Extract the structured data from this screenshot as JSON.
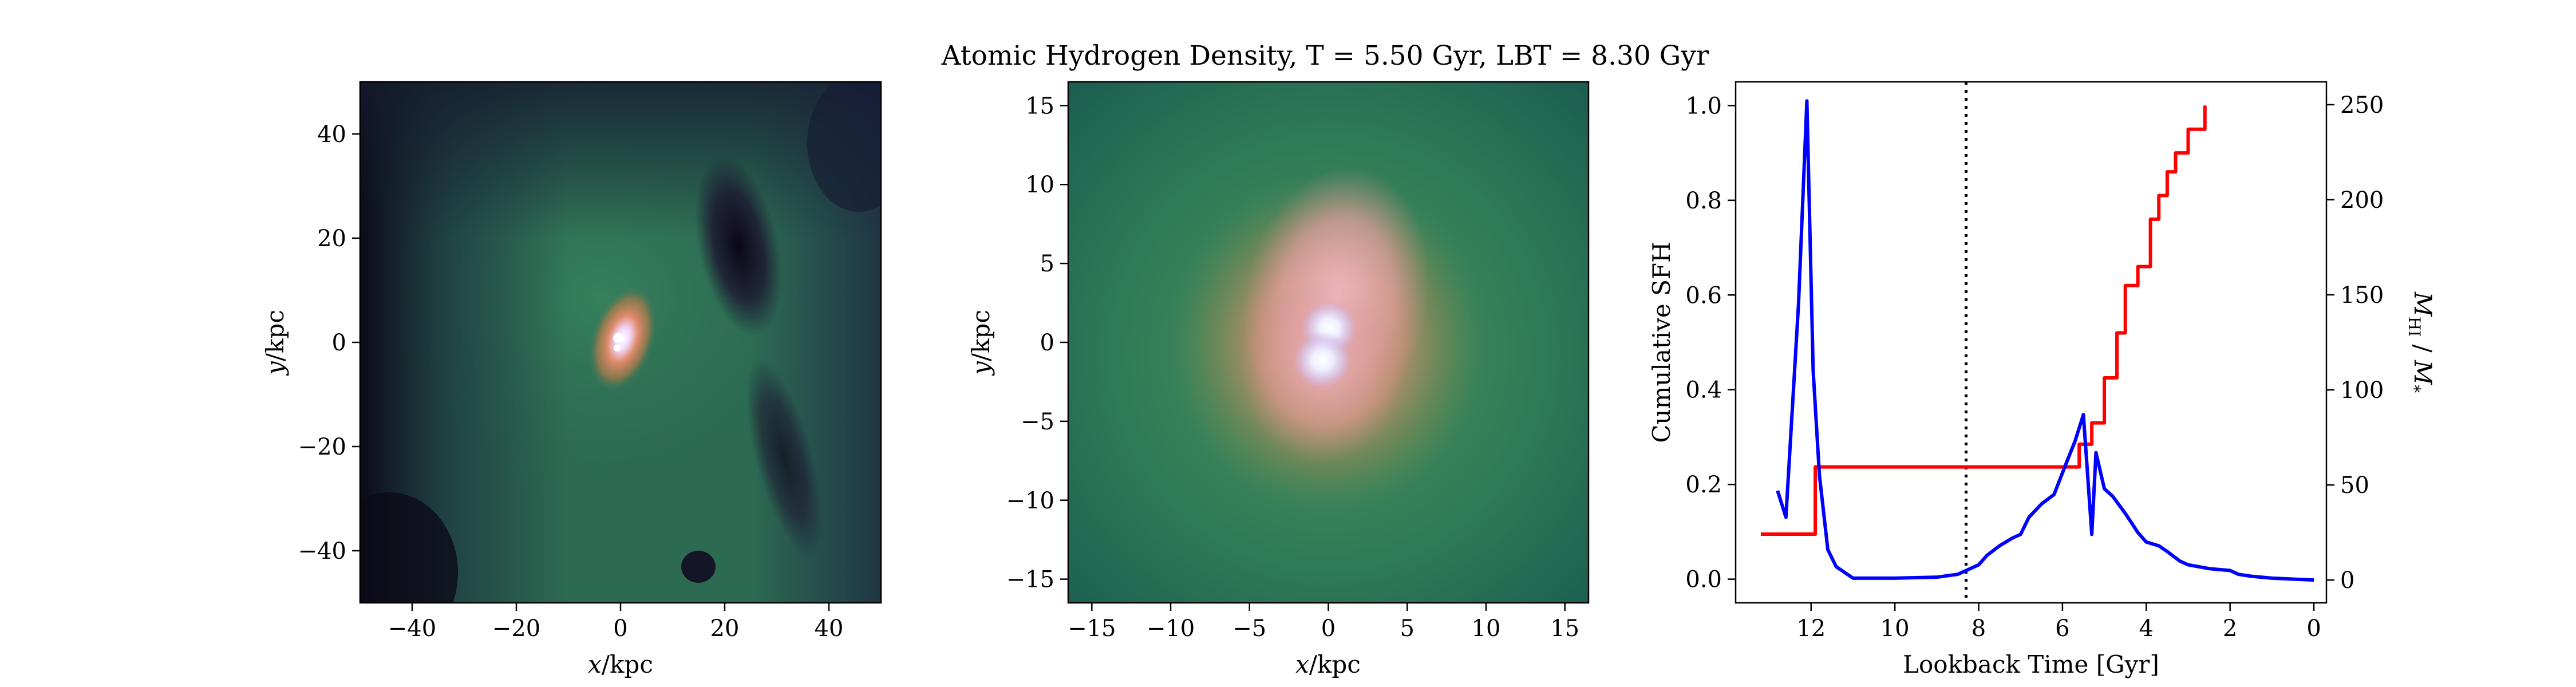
{
  "figure": {
    "title": "Atomic Hydrogen Density, T = 5.50 Gyr, LBT = 8.30 Gyr"
  },
  "panels": {
    "left": {
      "xlabel_var": "x",
      "xlabel_unit": "/kpc",
      "ylabel_var": "y",
      "ylabel_unit": "/kpc",
      "xlim": [
        -50,
        50
      ],
      "ylim": [
        -50,
        50
      ],
      "xticks": [
        "−40",
        "−20",
        "0",
        "20",
        "40"
      ],
      "yticks": [
        "40",
        "20",
        "0",
        "−20",
        "−40"
      ]
    },
    "middle": {
      "xlabel_var": "x",
      "xlabel_unit": "/kpc",
      "ylabel_var": "y",
      "ylabel_unit": "/kpc",
      "xlim": [
        -16.5,
        16.5
      ],
      "ylim": [
        -16.5,
        16.5
      ],
      "xticks": [
        "−15",
        "−10",
        "−5",
        "0",
        "5",
        "10",
        "15"
      ],
      "yticks": [
        "15",
        "10",
        "5",
        "0",
        "−5",
        "−10",
        "−15"
      ]
    },
    "right": {
      "xlabel": "Lookback Time [Gyr]",
      "ylabel_left": "Cumulative SFH",
      "ylabel_right_html": "M_HI / M_*",
      "ylabel_right": {
        "m": "M",
        "hi": "HI",
        "slash": " / ",
        "star": "*"
      },
      "xticks": [
        "12",
        "10",
        "8",
        "6",
        "4",
        "2",
        "0"
      ],
      "yticks_left": [
        "1.0",
        "0.8",
        "0.6",
        "0.4",
        "0.2",
        "0.0"
      ],
      "yticks_right": [
        "250",
        "200",
        "150",
        "100",
        "50",
        "0"
      ]
    }
  },
  "colors": {
    "sfh": "#ff0000",
    "ratio": "#0000ff",
    "marker": "#000000"
  },
  "chart_data": [
    {
      "type": "heatmap",
      "description_key": "left",
      "xlim": [
        -50,
        50
      ],
      "ylim": [
        -50,
        50
      ],
      "grid": false
    },
    {
      "type": "heatmap",
      "description_key": "middle",
      "xlim": [
        -16.5,
        16.5
      ],
      "ylim": [
        -16.5,
        16.5
      ],
      "grid": false
    },
    {
      "type": "line",
      "x_axis_reversed": true,
      "xlim": [
        13.8,
        -0.3
      ],
      "ylim_left": [
        -0.05,
        1.05
      ],
      "ylim_right": [
        -12,
        262
      ],
      "vline_x": 8.3,
      "series": [
        {
          "axis": "left",
          "color": "#ff0000",
          "step": true,
          "x": [
            13.2,
            12.0,
            11.9,
            5.8,
            5.6,
            5.3,
            5.0,
            4.7,
            4.5,
            4.2,
            3.9,
            3.7,
            3.5,
            3.3,
            3.0,
            2.8,
            2.6
          ],
          "y": [
            0.095,
            0.095,
            0.237,
            0.237,
            0.285,
            0.33,
            0.425,
            0.52,
            0.62,
            0.66,
            0.76,
            0.81,
            0.86,
            0.9,
            0.95,
            0.95,
            1.0
          ]
        },
        {
          "axis": "right",
          "color": "#0000ff",
          "x": [
            12.8,
            12.6,
            12.3,
            12.1,
            11.95,
            11.8,
            11.6,
            11.4,
            11.0,
            10.0,
            9.0,
            8.5,
            8.0,
            7.8,
            7.5,
            7.2,
            7.0,
            6.8,
            6.5,
            6.2,
            5.9,
            5.7,
            5.5,
            5.3,
            5.2,
            5.0,
            4.8,
            4.5,
            4.2,
            4.0,
            3.7,
            3.5,
            3.2,
            3.0,
            2.5,
            2.0,
            1.8,
            1.5,
            1.0,
            0.5,
            0.0
          ],
          "y": [
            47,
            33,
            145,
            252,
            110,
            55,
            16,
            7,
            1,
            1,
            1.5,
            3,
            8,
            13,
            18,
            22,
            24,
            33,
            40,
            45,
            62,
            73,
            87,
            24,
            67,
            48,
            44,
            35,
            25,
            20,
            18,
            15,
            10,
            8,
            6,
            5,
            3,
            2,
            1,
            0.5,
            0
          ]
        }
      ]
    }
  ]
}
